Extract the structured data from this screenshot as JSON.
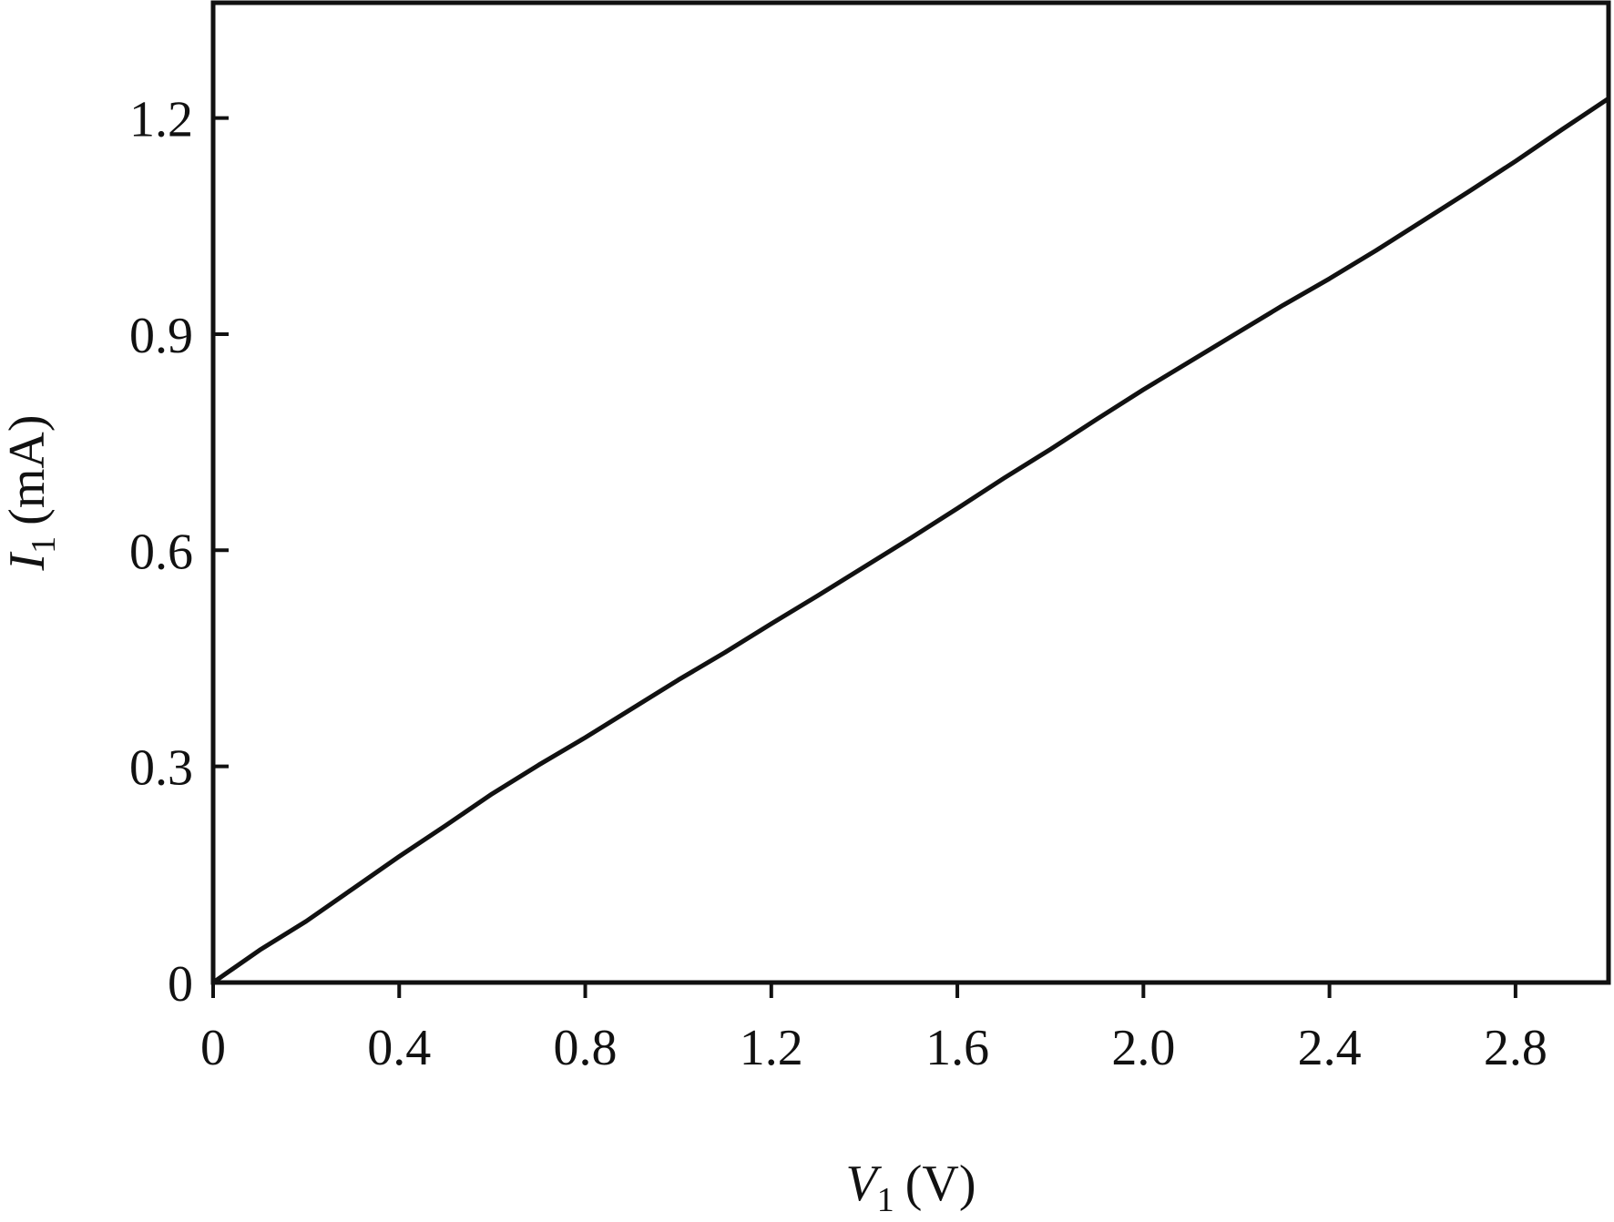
{
  "chart_data": {
    "type": "line",
    "xlabel": {
      "symbol": "V",
      "subscript": "1",
      "unit": "(V)"
    },
    "ylabel": {
      "symbol": "I",
      "subscript": "1",
      "unit": "(mA)"
    },
    "x": [
      0,
      0.1,
      0.2,
      0.3,
      0.4,
      0.5,
      0.6,
      0.7,
      0.8,
      0.9,
      1.0,
      1.1,
      1.2,
      1.3,
      1.4,
      1.5,
      1.6,
      1.7,
      1.8,
      1.9,
      2.0,
      2.1,
      2.2,
      2.3,
      2.4,
      2.5,
      2.6,
      2.7,
      2.8,
      2.9,
      3.0
    ],
    "series": [
      {
        "name": "I1",
        "color": "#111111",
        "values": [
          0,
          0.045,
          0.085,
          0.13,
          0.175,
          0.218,
          0.262,
          0.302,
          0.34,
          0.38,
          0.42,
          0.458,
          0.498,
          0.537,
          0.577,
          0.617,
          0.658,
          0.7,
          0.74,
          0.782,
          0.823,
          0.862,
          0.901,
          0.94,
          0.977,
          1.016,
          1.057,
          1.098,
          1.14,
          1.184,
          1.227
        ]
      }
    ],
    "xlim": [
      0,
      3.0
    ],
    "ylim": [
      0,
      1.36
    ],
    "xticks": [
      0,
      0.4,
      0.8,
      1.2,
      1.6,
      {
        "value": 2,
        "label": "2.0"
      },
      2.4,
      2.8
    ],
    "yticks": [
      0,
      0.3,
      0.6,
      0.9,
      1.2
    ]
  }
}
